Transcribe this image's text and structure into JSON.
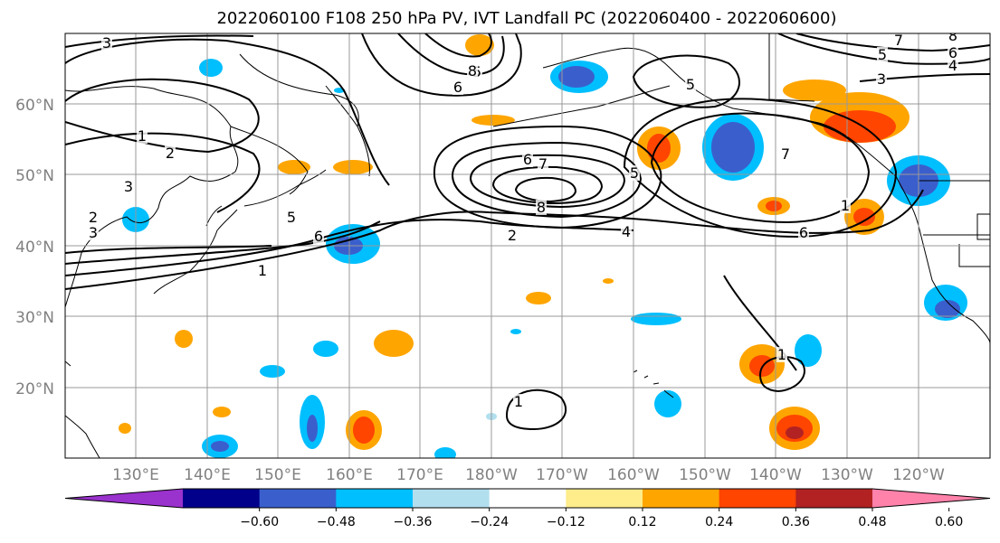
{
  "title": "2022060100 F108 250 hPa PV, IVT Landfall PC (2022060400 - 2022060600)",
  "lat_labels": [
    "20°N",
    "30°N",
    "40°N",
    "50°N",
    "60°N"
  ],
  "lon_labels": [
    "130°E",
    "140°E",
    "150°E",
    "160°E",
    "170°E",
    "180°W",
    "170°W",
    "160°W",
    "150°W",
    "140°W",
    "130°W",
    "120°W"
  ],
  "colorbar": {
    "colors": [
      "#9a32cd",
      "#00008b",
      "#3a5fcd",
      "#00bfff",
      "#b2dfee",
      "#ffffff",
      "#ffec8b",
      "#ffa500",
      "#ff4500",
      "#b22222",
      "#ff82ab"
    ],
    "tick_labels": [
      "−0.60",
      "−0.48",
      "−0.36",
      "−0.24",
      "−0.12",
      "0.12",
      "0.24",
      "0.36",
      "0.48",
      "0.60"
    ]
  },
  "contour_labels": [
    "3",
    "1",
    "2",
    "3",
    "2",
    "3",
    "5",
    "6",
    "1",
    "6",
    "5",
    "8",
    "6",
    "7",
    "8",
    "2",
    "4",
    "5",
    "5",
    "7",
    "6",
    "1",
    "3",
    "7",
    "6",
    "4",
    "5",
    "8",
    "1",
    "1"
  ]
}
